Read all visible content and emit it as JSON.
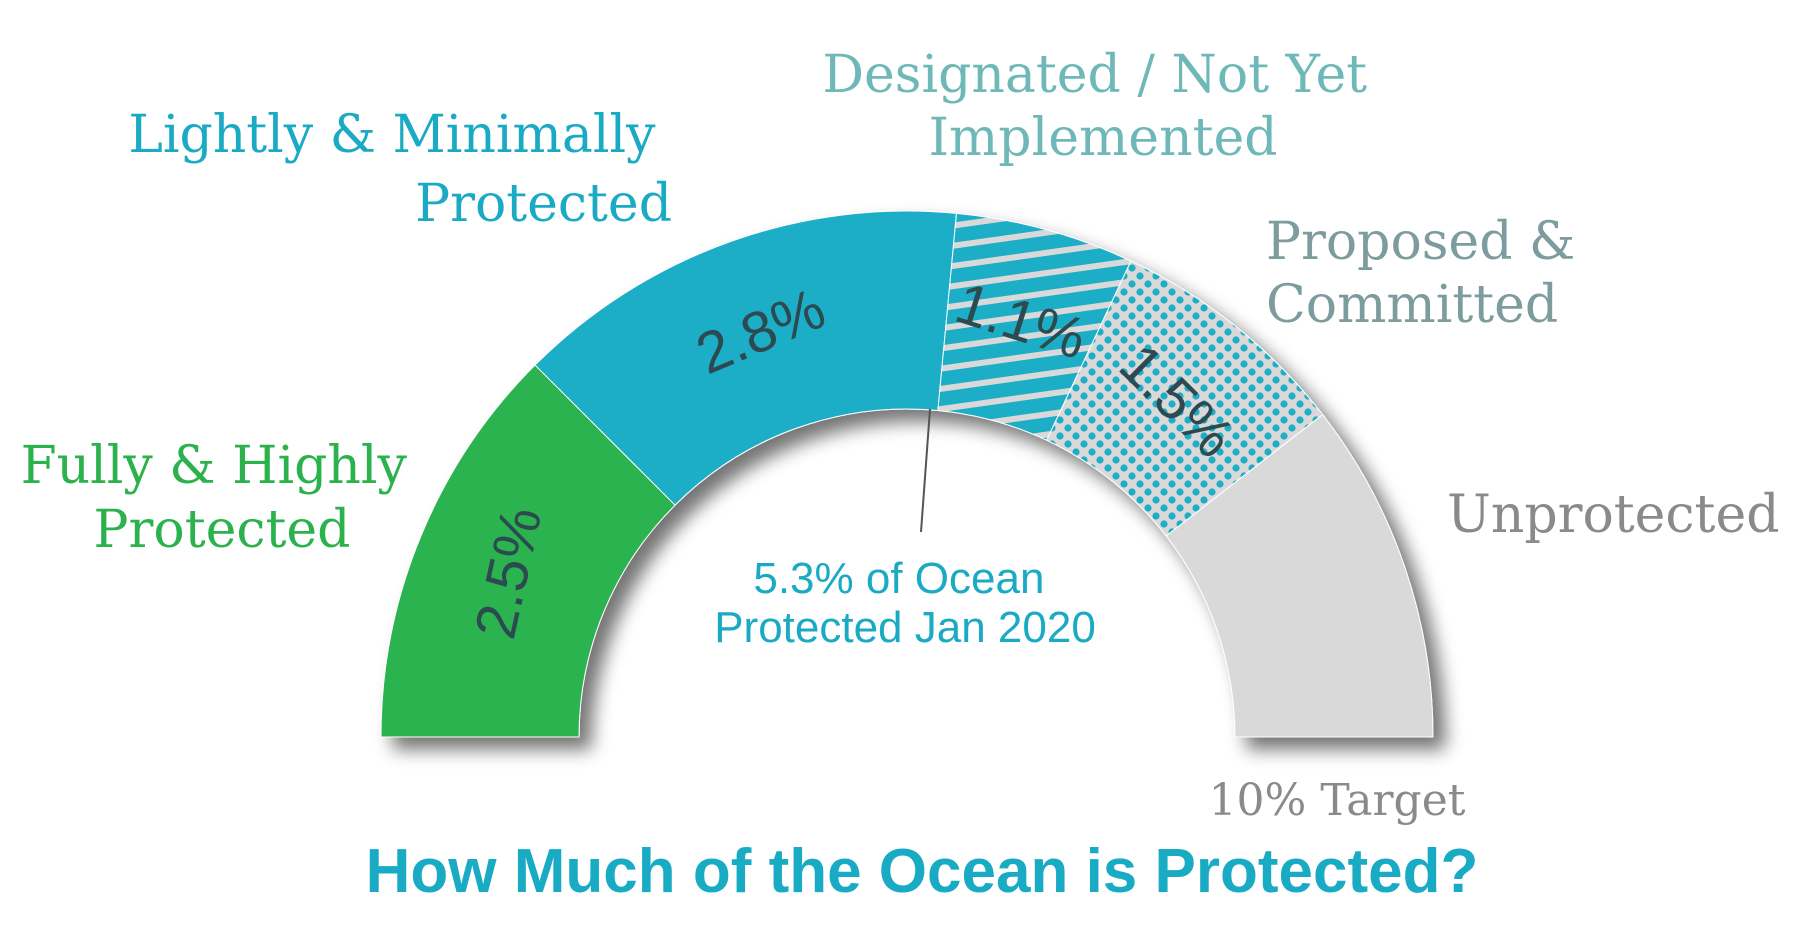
{
  "chart_data": {
    "type": "pie",
    "subtype": "half-donut gauge",
    "title": "How Much of the Ocean is Protected?",
    "scale_max_percent": 10,
    "target_label": "10% Target",
    "center_annotation": [
      "5.3% of Ocean",
      "Protected Jan 2020"
    ],
    "categories": [
      "Fully & Highly Protected",
      "Lightly & Minimally Protected",
      "Designated / Not Yet Implemented",
      "Proposed & Committed",
      "Unprotected"
    ],
    "values": [
      2.5,
      2.8,
      1.1,
      1.5,
      2.1
    ],
    "value_labels": [
      "2.5%",
      "2.8%",
      "1.1%",
      "1.5%",
      ""
    ],
    "legend_labels": [
      [
        "Fully & Highly",
        "Protected"
      ],
      [
        "Lightly & Minimally",
        "Protected"
      ],
      [
        "Designated / Not Yet",
        "Implemented"
      ],
      [
        "Proposed &",
        "Committed"
      ],
      [
        "Unprotected"
      ]
    ],
    "colors": [
      "#29b34f",
      "#1aaec7",
      "#1aaec7",
      "#d9d9d9",
      "#d9d9d9"
    ],
    "label_colors": [
      "#2bb24c",
      "#1aaac4",
      "#6fb8b8",
      "#7d9c9e",
      "#8a8a8a"
    ],
    "fills": [
      "solid",
      "solid",
      "stripes",
      "dots",
      "solid"
    ]
  },
  "colors": {
    "title": "#1aabc4",
    "value_text": "#2d4a50",
    "center_text": "#1aaac4",
    "target_text": "#8a8a8a"
  }
}
